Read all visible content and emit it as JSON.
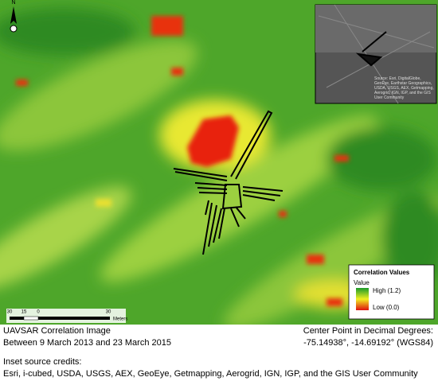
{
  "map": {
    "north_label": "N",
    "inset_credit": "Source: Esri, DigitalGlobe, GeoEye, Earthstar Geographics, USDA, USGS, AEX, Getmapping, Aerogrid, IGN, IGP, and the GIS User Community",
    "legend": {
      "title": "Correlation Values",
      "subtitle": "Value",
      "high": "High (1.2)",
      "low": "Low (0.0)"
    },
    "scale": {
      "ticks": [
        "30",
        "15",
        "0",
        "30"
      ],
      "unit": "Meters"
    }
  },
  "caption": {
    "left_line1": "UAVSAR Correlation Image",
    "left_line2": "Between 9 March 2013 and 23 March 2015",
    "right_line1": "Center Point in Decimal Degrees:",
    "right_line2": "-75.14938°, -14.69192° (WGS84)",
    "credits_title": "Inset source credits:",
    "credits": "Esri, i-cubed, USDA, USGS, AEX, GeoEye, Getmapping, Aerogrid, IGN, IGP, and the GIS User Community"
  }
}
